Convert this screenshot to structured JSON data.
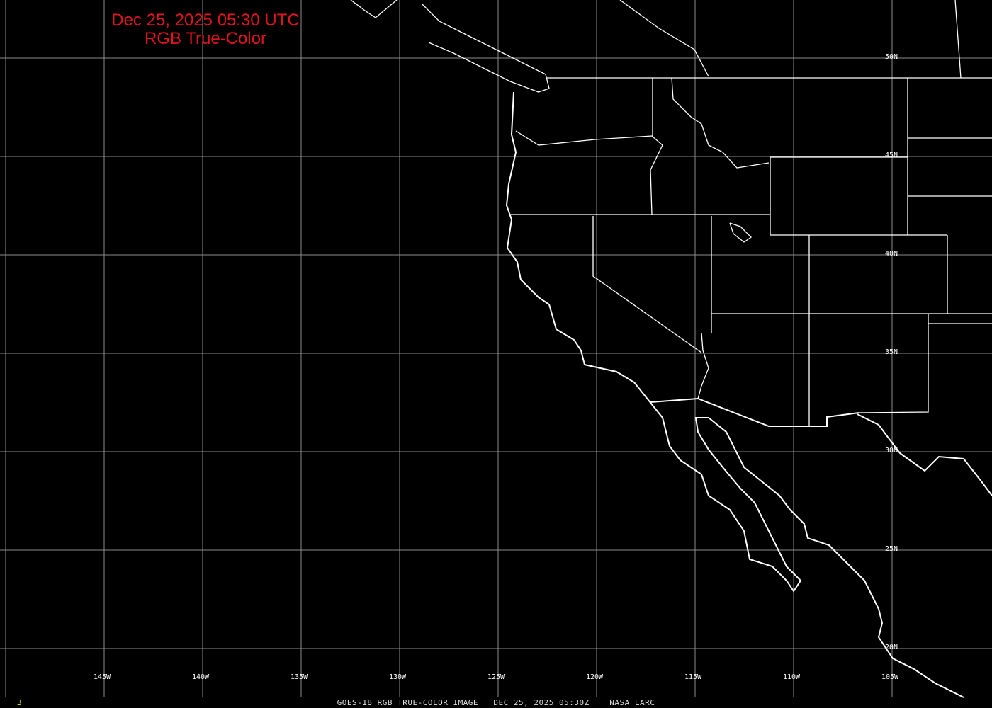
{
  "title": {
    "line1": "Dec 25, 2025 05:30 UTC",
    "line2": "RGB True-Color"
  },
  "footer": {
    "caption": "GOES-18 RGB TRUE-COLOR IMAGE   DEC 25, 2025 05:30Z    NASA LARC",
    "frame_number": "3"
  },
  "longitude_labels": [
    "145W",
    "140W",
    "135W",
    "130W",
    "125W",
    "120W",
    "115W",
    "110W",
    "105W"
  ],
  "latitude_labels": [
    "50N",
    "45N",
    "40N",
    "35N",
    "30N",
    "25N",
    "20N"
  ],
  "colors": {
    "background": "#000000",
    "grid": "#8c8c8c",
    "coastline": "#ffffff",
    "title": "#e0141e",
    "frame_number": "#e6e600"
  }
}
